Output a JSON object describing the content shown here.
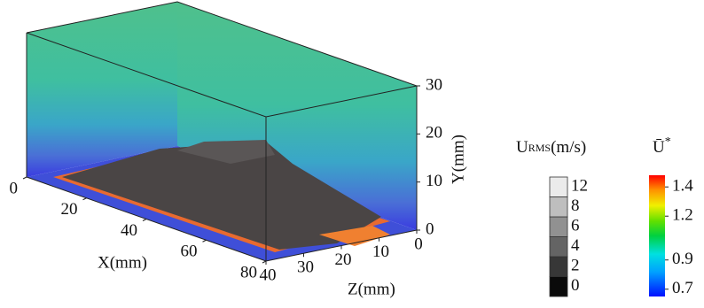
{
  "figure": {
    "x_axis": {
      "label": "X(mm)",
      "lim": [
        0,
        80
      ],
      "ticks": [
        0,
        20,
        40,
        60,
        80
      ]
    },
    "y_axis": {
      "label": "Y(mm)",
      "lim": [
        0,
        30
      ],
      "ticks": [
        0,
        10,
        20,
        30
      ]
    },
    "z_axis": {
      "label": "Z(mm)",
      "lim": [
        0,
        40
      ],
      "ticks": [
        0,
        10,
        20,
        30,
        40
      ]
    },
    "rms_colorbar": {
      "title": "U",
      "title_sub": "RMS",
      "unit": "(m/s)",
      "ticks": [
        0,
        2,
        4,
        6,
        8,
        12
      ]
    },
    "u_colorbar": {
      "title": "Ū",
      "title_sup": "*",
      "clim": [
        0.65,
        1.48
      ],
      "ticks": [
        0.7,
        0.9,
        1.2,
        1.4
      ]
    }
  }
}
